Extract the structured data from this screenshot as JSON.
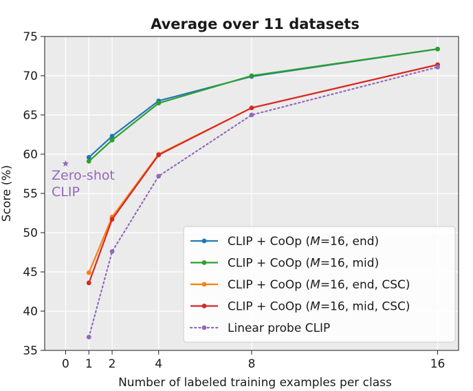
{
  "chart_data": {
    "type": "line",
    "title": "Average over 11 datasets",
    "xlabel": "Number of labeled training examples per class",
    "ylabel": "Score (%)",
    "xlim": [
      -0.9,
      16.9
    ],
    "ylim": [
      35,
      75
    ],
    "xticks": [
      0,
      1,
      2,
      4,
      8,
      16
    ],
    "yticks": [
      35,
      40,
      45,
      50,
      55,
      60,
      65,
      70,
      75
    ],
    "grid": true,
    "legend_position": "lower-right",
    "x": [
      1,
      2,
      4,
      8,
      16
    ],
    "series": [
      {
        "name": "CLIP + CoOp (M=16, end)",
        "legend_prefix": "CLIP + CoOp (",
        "legend_italic": "M",
        "legend_suffix": "=16, end)",
        "color": "#1f77b4",
        "style": "solid",
        "values": [
          59.6,
          62.3,
          66.8,
          69.9,
          73.4
        ]
      },
      {
        "name": "CLIP + CoOp (M=16, mid)",
        "legend_prefix": "CLIP + CoOp (",
        "legend_italic": "M",
        "legend_suffix": "=16, mid)",
        "color": "#2ca02c",
        "style": "solid",
        "values": [
          59.1,
          61.8,
          66.5,
          70.0,
          73.4
        ]
      },
      {
        "name": "CLIP + CoOp (M=16, end, CSC)",
        "legend_prefix": "CLIP + CoOp (",
        "legend_italic": "M",
        "legend_suffix": "=16, end, CSC)",
        "color": "#ff7f0e",
        "style": "solid",
        "values": [
          44.9,
          52.0,
          60.0,
          65.9,
          71.4
        ]
      },
      {
        "name": "CLIP + CoOp (M=16, mid, CSC)",
        "legend_prefix": "CLIP + CoOp (",
        "legend_italic": "M",
        "legend_suffix": "=16, mid, CSC)",
        "color": "#d62728",
        "style": "solid",
        "values": [
          43.6,
          51.7,
          59.9,
          65.9,
          71.4
        ]
      },
      {
        "name": "Linear probe CLIP",
        "legend_prefix": "Linear probe CLIP",
        "legend_italic": "",
        "legend_suffix": "",
        "color": "#9467bd",
        "style": "dotted",
        "values": [
          36.7,
          47.6,
          57.2,
          65.0,
          71.1
        ]
      }
    ],
    "annotations": [
      {
        "text_lines": [
          "Zero-shot",
          "CLIP"
        ],
        "x": 0,
        "y": 58.8,
        "marker": "star",
        "color": "#9467bd"
      }
    ]
  }
}
